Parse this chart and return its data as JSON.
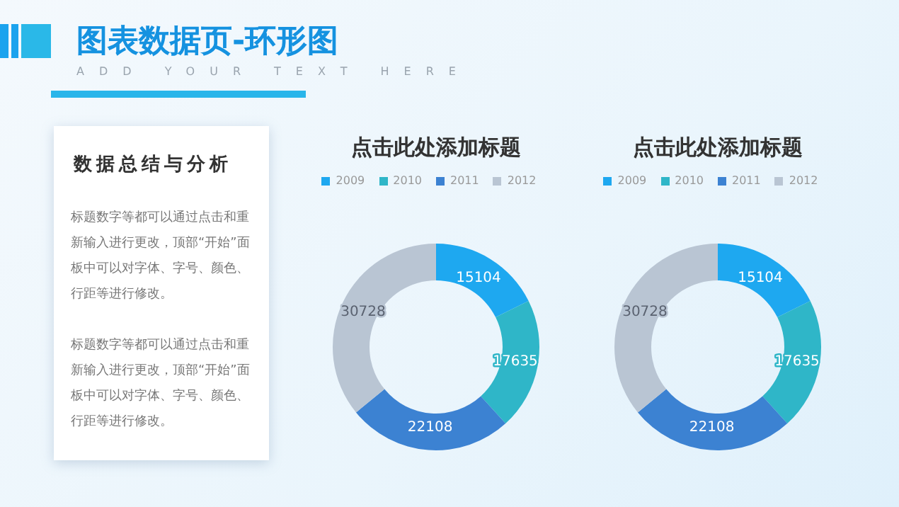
{
  "chart_data": [
    {
      "type": "other",
      "title": "图表数据页-环形图",
      "subtitle": "ADD YOUR TEXT HERE",
      "annotations": [
        "数据总结与分析",
        "标题数字等都可以通过点击和重新输入进行更改，顶部“开始”面板中可以对字体、字号、颜色、行距等进行修改。",
        "标题数字等都可以通过点击和重新输入进行更改，顶部“开始”面板中可以对字体、字号、颜色、行距等进行修改。"
      ]
    },
    {
      "type": "donut",
      "title": "点击此处添加标题",
      "categories": [
        "2009",
        "2010",
        "2011",
        "2012"
      ],
      "values": [
        15104,
        17635,
        22108,
        30728
      ],
      "colors": [
        "#1ea8f0",
        "#2fb6c8",
        "#3c82d2",
        "#b9c5d3"
      ],
      "data_labels": true,
      "legend": "top"
    },
    {
      "type": "donut",
      "title": "点击此处添加标题",
      "categories": [
        "2009",
        "2010",
        "2011",
        "2012"
      ],
      "values": [
        15104,
        17635,
        22108,
        30728
      ],
      "colors": [
        "#1ea8f0",
        "#2fb6c8",
        "#3c82d2",
        "#b9c5d3"
      ],
      "data_labels": true,
      "legend": "top"
    }
  ]
}
